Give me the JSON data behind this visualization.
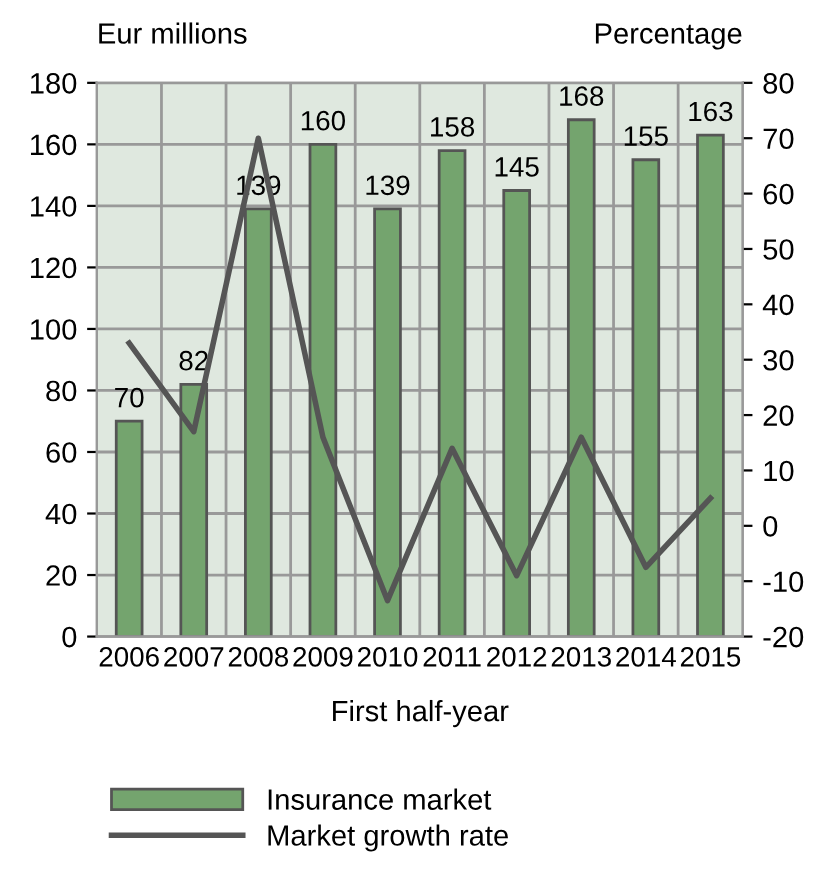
{
  "chart_data": {
    "type": "bar",
    "xlabel": "First half-year",
    "ylabel": "Eur millions",
    "y2label": "Percentage",
    "categories": [
      "2006",
      "2007",
      "2008",
      "2009",
      "2010",
      "2011",
      "2012",
      "2013",
      "2014",
      "2015"
    ],
    "series": [
      {
        "name": "Insurance market",
        "color": "#74a46e",
        "values": [
          70,
          82,
          139,
          160,
          139,
          158,
          145,
          168,
          155,
          163
        ],
        "value_labels": [
          "70",
          "82",
          "139",
          "160",
          "139",
          "158",
          "145",
          "168",
          "155",
          "163"
        ]
      },
      {
        "name": "Market growth rate",
        "type": "line",
        "axis": "y2",
        "color": "#555555",
        "values": [
          33,
          17,
          70,
          16,
          -13.5,
          14,
          -9,
          16,
          -7.5,
          5
        ]
      }
    ],
    "ylim": [
      0,
      180
    ],
    "yticks": [
      0,
      20,
      40,
      60,
      80,
      100,
      120,
      140,
      160,
      180
    ],
    "y2lim": [
      -20,
      80
    ],
    "y2ticks": [
      -20,
      -10,
      0,
      10,
      20,
      30,
      40,
      50,
      60,
      70,
      80
    ],
    "grid": true,
    "legend": "bottom"
  }
}
